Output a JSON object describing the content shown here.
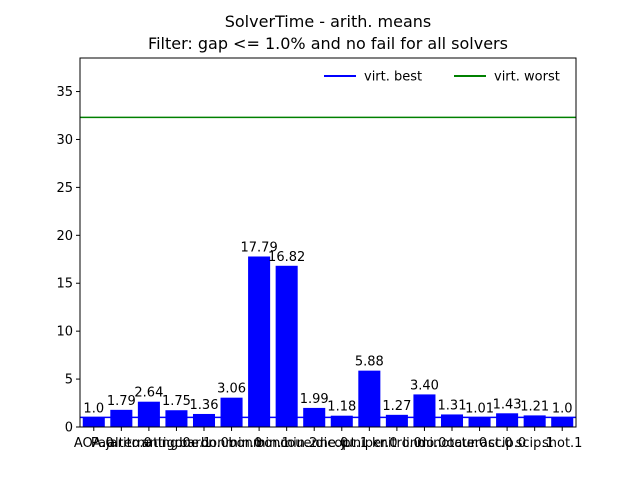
{
  "chart_data": {
    "type": "bar",
    "title": "SolverTime - arith. means",
    "subtitle": "Filter: gap <= 1.0% and no fail for all solvers",
    "xlabel": "",
    "ylabel": "",
    "ylim": [
      0,
      38.5
    ],
    "yticks": [
      0,
      5,
      10,
      15,
      20,
      25,
      30,
      35
    ],
    "categories": [
      "AOA.0",
      "Pajarito.0",
      "alternating.0",
      "antigone.1",
      "baron.0",
      "bonmin.0",
      "bonmin.1",
      "bonmin.2",
      "couenne.0",
      "dicopt.1",
      "juniper.0",
      "knitro.0",
      "lindo.0",
      "minotaur.0",
      "octeract.0",
      "scip.0",
      "scip.1",
      "shot.1"
    ],
    "values": [
      1.0,
      1.79,
      2.64,
      1.75,
      1.36,
      3.06,
      17.79,
      16.82,
      1.99,
      1.18,
      5.88,
      1.27,
      3.4,
      1.31,
      1.01,
      1.43,
      1.21,
      1.0
    ],
    "value_labels": [
      "1.0",
      "1.79",
      "2.64",
      "1.75",
      "1.36",
      "3.06",
      "17.79",
      "16.82",
      "1.99",
      "1.18",
      "5.88",
      "1.27",
      "3.40",
      "1.31",
      "1.01",
      "1.43",
      "1.21",
      "1.0"
    ],
    "bar_color": "#0000ff",
    "reference_lines": [
      {
        "name": "virt. best",
        "value": 1.0,
        "color": "#0000ff"
      },
      {
        "name": "virt. worst",
        "value": 32.3,
        "color": "#008000"
      }
    ],
    "legend_position": "top-right",
    "grid": false
  }
}
